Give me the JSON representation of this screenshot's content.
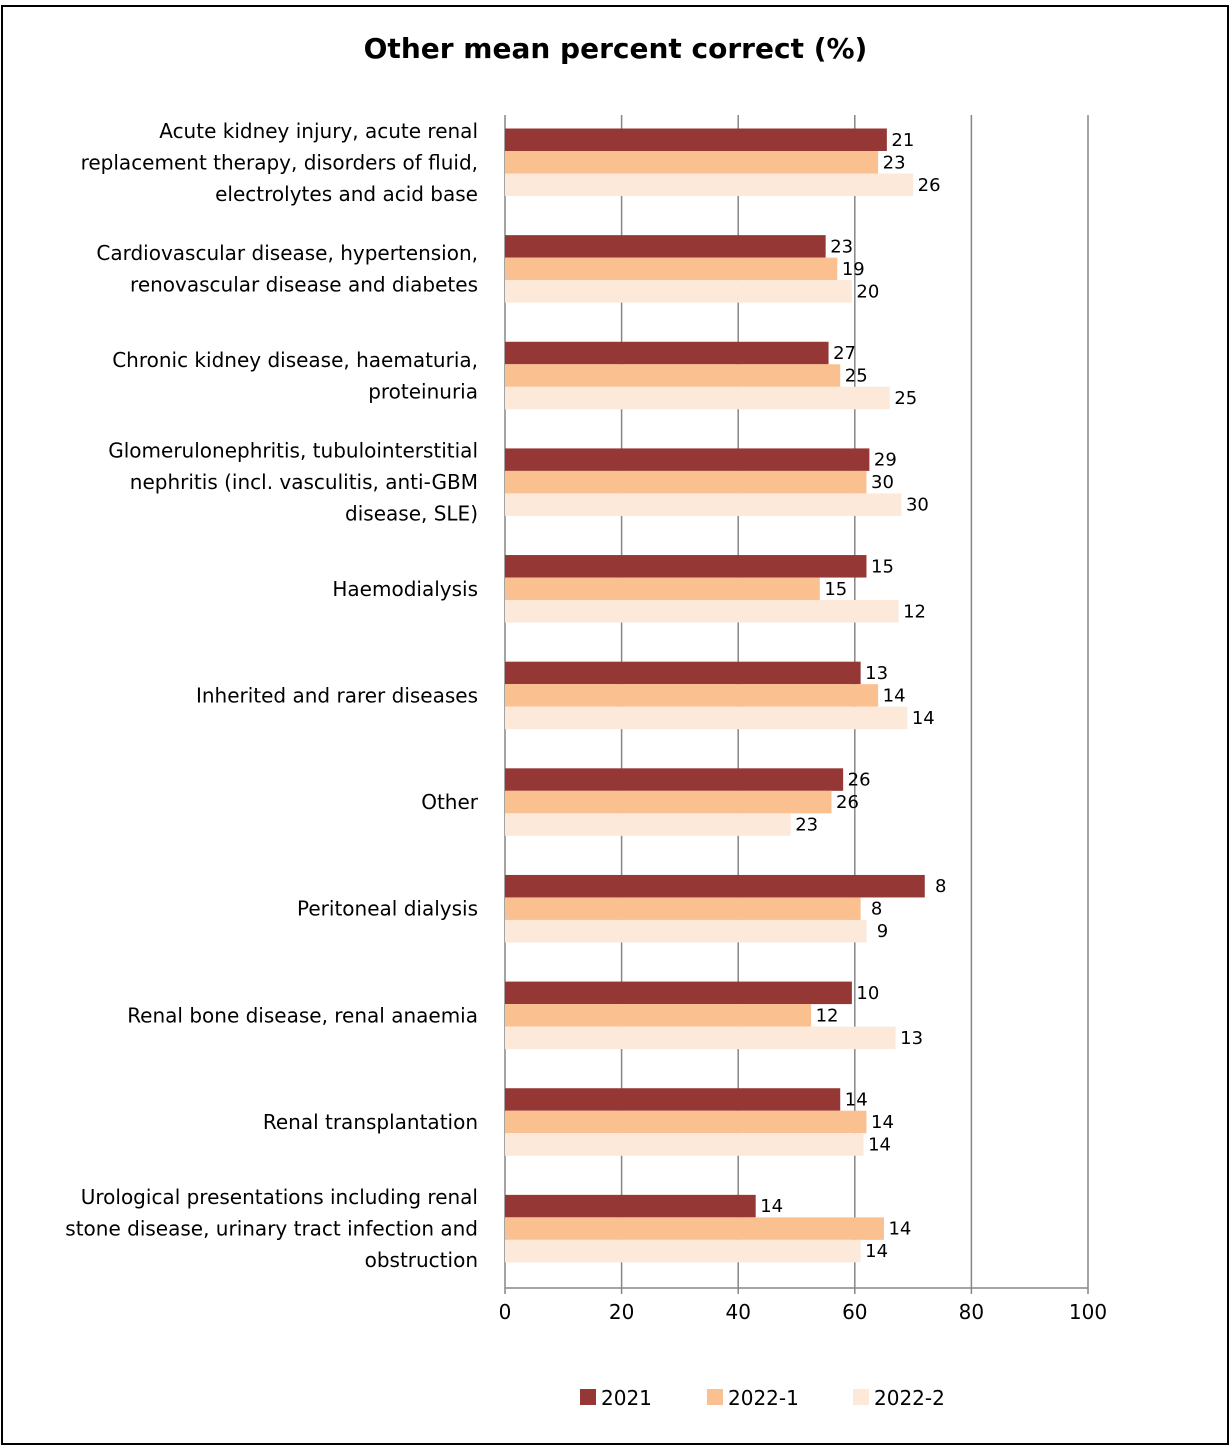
{
  "chart_data": {
    "type": "bar",
    "orientation": "horizontal",
    "title": "Other mean percent correct (%)",
    "categories": [
      [
        "Acute kidney injury, acute renal",
        "replacement therapy, disorders of fluid,",
        "electrolytes and acid base"
      ],
      [
        "Cardiovascular disease, hypertension,",
        "renovascular disease and diabetes"
      ],
      [
        "Chronic kidney disease, haematuria,",
        "proteinuria"
      ],
      [
        "Glomerulonephritis, tubulointerstitial",
        "nephritis (incl. vasculitis, anti-GBM",
        "disease, SLE)"
      ],
      [
        "Haemodialysis"
      ],
      [
        "Inherited and rarer diseases"
      ],
      [
        "Other"
      ],
      [
        "Peritoneal dialysis"
      ],
      [
        "Renal bone disease, renal anaemia"
      ],
      [
        "Renal transplantation"
      ],
      [
        "Urological presentations including renal",
        "stone disease, urinary tract infection and",
        "obstruction"
      ]
    ],
    "series": [
      {
        "name": "2021",
        "color": "#953735",
        "values": [
          65.5,
          55,
          55.5,
          62.5,
          62,
          61,
          58,
          72,
          59.5,
          57.5,
          43
        ],
        "labels": [
          "21",
          "23",
          "27",
          "29",
          "15",
          "13",
          "26",
          "8",
          "10",
          "14",
          "14"
        ]
      },
      {
        "name": "2022-1",
        "color": "#FAC090",
        "values": [
          64,
          57,
          57.5,
          62,
          54,
          64,
          56,
          61,
          52.5,
          62,
          65
        ],
        "labels": [
          "23",
          "19",
          "25",
          "30",
          "15",
          "14",
          "26",
          "8",
          "12",
          "14",
          "14"
        ]
      },
      {
        "name": "2022-2",
        "color": "#FDE9D9",
        "values": [
          70,
          59.5,
          66,
          68,
          67.5,
          69,
          49,
          62,
          67,
          61.5,
          61
        ],
        "labels": [
          "26",
          "20",
          "25",
          "30",
          "12",
          "14",
          "23",
          "9",
          "13",
          "14",
          "14"
        ]
      }
    ],
    "xlim": [
      0,
      100
    ],
    "xticks": [
      "0",
      "20",
      "40",
      "60",
      "80",
      "100"
    ],
    "xlabel": "",
    "ylabel": "",
    "grid": true,
    "legend": "bottom"
  }
}
